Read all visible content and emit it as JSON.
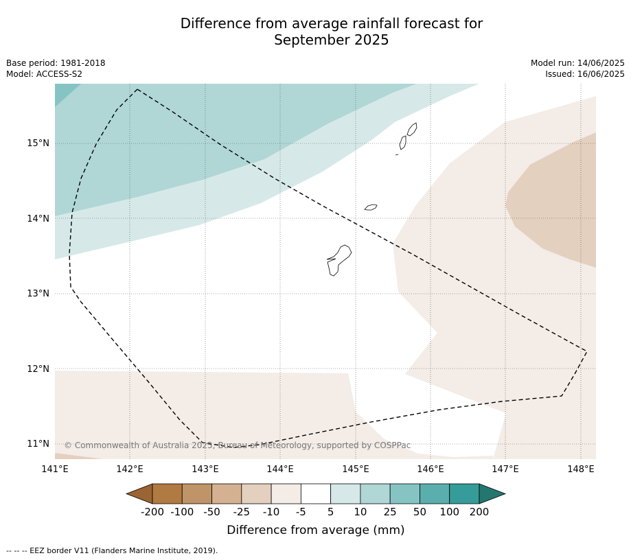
{
  "title": {
    "line1": "Difference from average rainfall forecast for",
    "line2": "September 2025"
  },
  "meta": {
    "base_period": "Base period: 1981-2018",
    "model": "Model: ACCESS-S2",
    "model_run": "Model run: 14/06/2025",
    "issued": "Issued: 16/06/2025"
  },
  "map": {
    "lon_range": [
      141,
      148.2
    ],
    "lat_range": [
      10.8,
      15.8
    ],
    "lon_ticks": [
      "141°E",
      "142°E",
      "143°E",
      "144°E",
      "145°E",
      "146°E",
      "147°E",
      "148°E"
    ],
    "lat_ticks": [
      "15°N",
      "14°N",
      "13°N",
      "12°N",
      "11°N"
    ],
    "grid": true,
    "copyright": "© Commonwealth of Australia 2025, Bureau of Meteorology, supported by COSPPac"
  },
  "colorbar": {
    "label": "Difference from average (mm)",
    "tick_labels": [
      "-200",
      "-100",
      "-50",
      "-25",
      "-10",
      "-5",
      "5",
      "10",
      "25",
      "50",
      "100",
      "200"
    ],
    "colors": [
      "#9b6433",
      "#b07a42",
      "#bf9468",
      "#d4b191",
      "#e4d0bf",
      "#f3ece7",
      "#ffffff",
      "#d6e9e8",
      "#b0d6d6",
      "#86c4c4",
      "#5aaeae",
      "#359c9a",
      "#24776f"
    ],
    "fill_colors": {
      "deep_teal": "#86c4c4",
      "teal": "#b0d6d6",
      "light_teal": "#d6e9e8",
      "pale_brown": "#f3ece7",
      "tan": "#e4d0bf"
    }
  },
  "legend": {
    "eez": "--  --  -- EEZ border V11 (Flanders Marine Institute, 2019)."
  }
}
